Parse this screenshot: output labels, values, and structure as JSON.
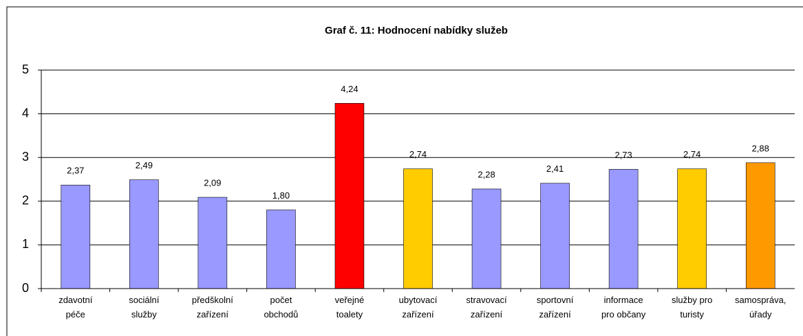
{
  "chart_data": {
    "type": "bar",
    "title": "Graf č. 11:  Hodnocení nabídky služeb",
    "categories": [
      "zdavotní\npéče",
      "sociální\nslužby",
      "předškolní\nzařízení",
      "počet\nobchodů",
      "veřejné\ntoalety",
      "ubytovací\nzařízení",
      "stravovací\nzařízení",
      "sportovní\nzařízení",
      "informace\npro občany",
      "služby pro\nturisty",
      "samospráva,\núřady"
    ],
    "values": [
      2.37,
      2.49,
      2.09,
      1.8,
      4.24,
      2.74,
      2.28,
      2.41,
      2.73,
      2.74,
      2.88
    ],
    "value_labels": [
      "2,37",
      "2,49",
      "2,09",
      "1,80",
      "4,24",
      "2,74",
      "2,28",
      "2,41",
      "2,73",
      "2,74",
      "2,88"
    ],
    "colors": [
      "#9999ff",
      "#9999ff",
      "#9999ff",
      "#9999ff",
      "#ff0000",
      "#ffcc00",
      "#9999ff",
      "#9999ff",
      "#9999ff",
      "#ffcc00",
      "#ff9900"
    ],
    "ylim": [
      0,
      5
    ],
    "yticks": [
      0,
      1,
      2,
      3,
      4,
      5
    ],
    "grid": true
  }
}
